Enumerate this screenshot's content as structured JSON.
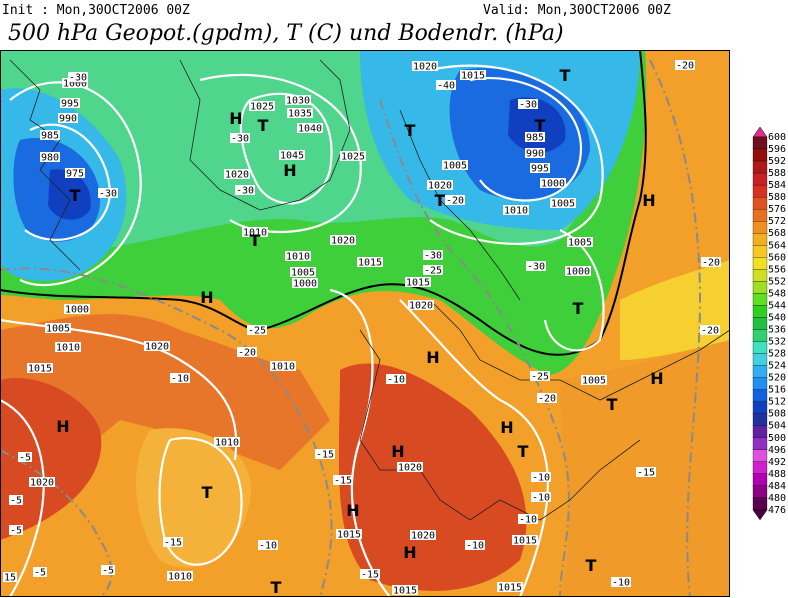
{
  "header": {
    "init": "Init : Mon,30OCT2006 00Z",
    "valid": "Valid: Mon,30OCT2006 00Z",
    "title": "500 hPa Geopot.(gpdm), T (C) und Bodendr. (hPa)"
  },
  "colorbar": {
    "labels": [
      "600",
      "596",
      "592",
      "588",
      "584",
      "580",
      "576",
      "572",
      "568",
      "564",
      "560",
      "556",
      "552",
      "548",
      "544",
      "540",
      "536",
      "532",
      "528",
      "524",
      "520",
      "516",
      "512",
      "508",
      "504",
      "500",
      "496",
      "492",
      "488",
      "484",
      "480",
      "476"
    ]
  },
  "map": {
    "labels": [
      "T",
      "975",
      "980",
      "985",
      "990",
      "995",
      "1000",
      "-30",
      "-30",
      "T",
      "985",
      "990",
      "995",
      "1000",
      "1005",
      "-30",
      "T",
      "1020",
      "1015",
      "-40",
      "H",
      "1045",
      "1040",
      "1035",
      "1030",
      "1025",
      "H",
      "T",
      "-30",
      "1020",
      "-30",
      "1025",
      "T",
      "1005",
      "1020",
      "T",
      "-20",
      "1010",
      "T",
      "1010",
      "1020",
      "1005",
      "1000",
      "1015",
      "1015",
      "1020",
      "-25",
      "-30",
      "1010",
      "1005",
      "1000",
      "T",
      "-30",
      "H",
      "1000",
      "1005",
      "1010",
      "1015",
      "1020",
      "-10",
      "1010",
      "-20",
      "-25",
      "H",
      "-10",
      "H",
      "1005",
      "-25",
      "-20",
      "T",
      "-20",
      "-20",
      "-20",
      "H",
      "H",
      "-5",
      "1020",
      "-5",
      "-5",
      "1010",
      "T",
      "-15",
      "-15",
      "-15",
      "H",
      "1020",
      "H",
      "T",
      "-10",
      "-10",
      "-10",
      "H",
      "1015",
      "1020",
      "H",
      "-10",
      "1015",
      "T",
      "-10",
      "-15",
      "-10",
      "-5",
      "-5",
      "1010",
      "T",
      "1015",
      "1015",
      "-15",
      "15"
    ]
  }
}
